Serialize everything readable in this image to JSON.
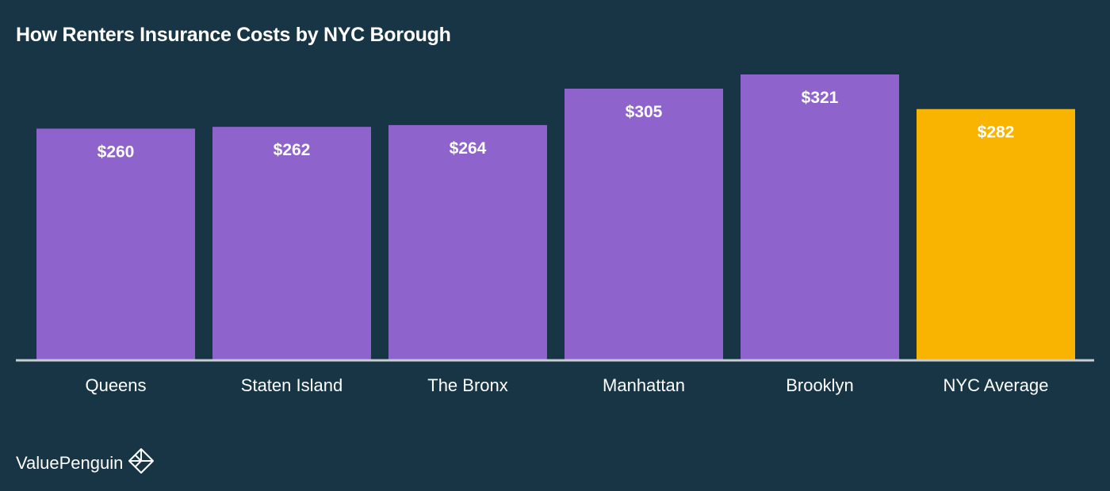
{
  "title": "How Renters Insurance Costs by NYC Borough",
  "brand": "ValuePenguin",
  "colors": {
    "background": "#173545",
    "bar": "#8f63cc",
    "highlight": "#f8b400",
    "axis": "#c7cdd0",
    "text": "#ffffff"
  },
  "chart_data": {
    "type": "bar",
    "categories": [
      "Queens",
      "Staten Island",
      "The Bronx",
      "Manhattan",
      "Brooklyn",
      "NYC Average"
    ],
    "values": [
      260,
      262,
      264,
      305,
      321,
      282
    ],
    "labels": [
      "$260",
      "$262",
      "$264",
      "$305",
      "$321",
      "$282"
    ],
    "highlight_index": 5,
    "title": "How Renters Insurance Costs by NYC Borough",
    "xlabel": "",
    "ylabel": "",
    "ylim": [
      0,
      321
    ],
    "grid": false
  }
}
